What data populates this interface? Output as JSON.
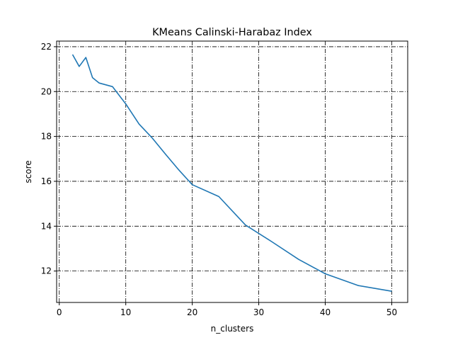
{
  "chart_data": {
    "type": "line",
    "title": "KMeans Calinski-Harabaz Index",
    "xlabel": "n_clusters",
    "ylabel": "score",
    "xlim": [
      -0.4,
      52.4
    ],
    "ylim": [
      10.6,
      22.25
    ],
    "xticks": [
      0,
      10,
      20,
      30,
      40,
      50
    ],
    "yticks": [
      12,
      14,
      16,
      18,
      20,
      22
    ],
    "grid": true,
    "grid_style": "dash-dot",
    "colors": {
      "line": "#1f77b4",
      "grid": "#000000"
    },
    "series": [
      {
        "x": [
          2,
          3,
          4,
          5,
          6,
          8,
          10,
          12,
          14,
          16,
          18,
          20,
          24,
          28,
          32,
          36,
          40,
          45,
          50
        ],
        "values": [
          21.65,
          21.12,
          21.52,
          20.62,
          20.38,
          20.22,
          19.45,
          18.55,
          17.92,
          17.2,
          16.5,
          15.85,
          15.32,
          14.05,
          13.3,
          12.52,
          11.88,
          11.35,
          11.1
        ]
      }
    ]
  }
}
